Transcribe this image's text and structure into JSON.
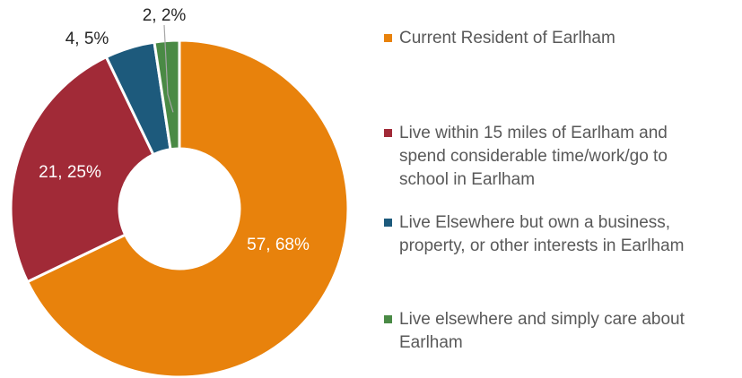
{
  "chart_data": {
    "type": "pie",
    "variant": "doughnut",
    "title": "",
    "slices": [
      {
        "label": "Current Resident of Earlham",
        "value": 57,
        "percent": "68%",
        "data_label": "57, 68%",
        "color": "#E8820C",
        "label_color": "#ffffff"
      },
      {
        "label": "Live within 15 miles of Earlham and spend considerable time/work/go to school in Earlham",
        "value": 21,
        "percent": "25%",
        "data_label": "21, 25%",
        "color": "#A12A37",
        "label_color": "#ffffff"
      },
      {
        "label": "Live Elsewhere but own a business, property, or other interests in Earlham",
        "value": 4,
        "percent": "5%",
        "data_label": "4, 5%",
        "color": "#1D5A7C",
        "label_color": "#262626"
      },
      {
        "label": "Live elsewhere and simply care about Earlham",
        "value": 2,
        "percent": "2%",
        "data_label": "2, 2%",
        "color": "#4A8A45",
        "label_color": "#262626"
      }
    ],
    "legend_position": "right"
  },
  "legend": {
    "items": [
      {
        "lines": [
          "Current Resident of Earlham"
        ],
        "color": "#E8820C"
      },
      {
        "lines": [
          "Live within 15 miles of Earlham and",
          "spend considerable time/work/go to",
          "school in Earlham"
        ],
        "color": "#A12A37"
      },
      {
        "lines": [
          "Live Elsewhere but own a business,",
          "property, or other interests in Earlham"
        ],
        "color": "#1D5A7C"
      },
      {
        "lines": [
          "Live elsewhere and simply care about",
          "Earlham"
        ],
        "color": "#4A8A45"
      }
    ]
  }
}
